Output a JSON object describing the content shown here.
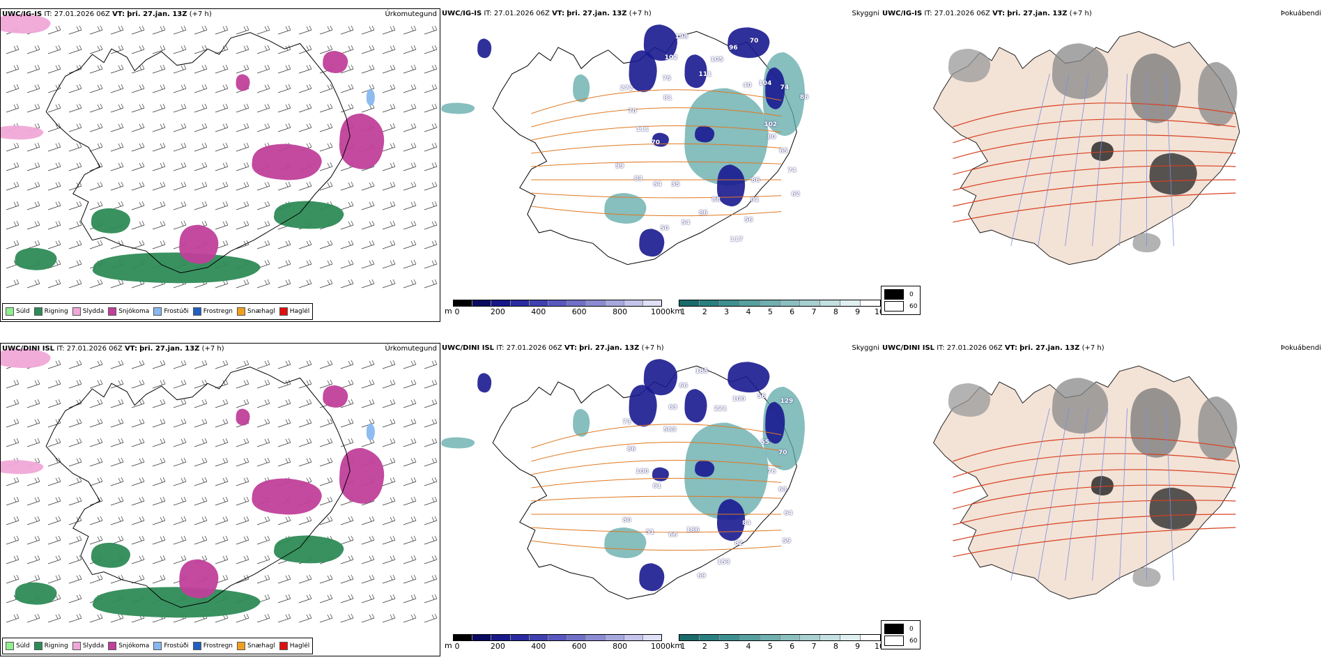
{
  "rows": [
    {
      "model": "UWC/IG-IS",
      "it_label": "IT:",
      "it_value": "27.01.2026 06Z",
      "vt_label": "VT:",
      "vt_value": "þri. 27.jan. 13Z",
      "offset": "(+7 h)",
      "cloud_labels": [
        "80",
        "65",
        "74",
        "62",
        "86",
        "81",
        "56",
        "117",
        "88",
        "86",
        "54",
        "50",
        "35",
        "64",
        "83",
        "99",
        "70",
        "111",
        "70",
        "272",
        "81",
        "75",
        "102",
        "198",
        "111",
        "105",
        "96",
        "70",
        "40",
        "104",
        "74",
        "86",
        "102"
      ]
    },
    {
      "model": "UWC/DINI ISL",
      "it_label": "IT:",
      "it_value": "27.01.2026 06Z",
      "vt_label": "VT:",
      "vt_value": "þri. 27.jan. 13Z",
      "offset": "(+7 h)",
      "cloud_labels": [
        "76",
        "63",
        "64",
        "59",
        "84",
        "82",
        "153",
        "69",
        "186",
        "66",
        "51",
        "80",
        "61",
        "100",
        "86",
        "73",
        "563",
        "63",
        "66",
        "185",
        "221",
        "100",
        "56",
        "129",
        "55",
        "70"
      ]
    }
  ],
  "panel_titles": {
    "precip": "Úrkomutegund",
    "cloud": "Skyggni",
    "fog": "Þokuábendi"
  },
  "precip_legend": [
    {
      "label": "Súld",
      "color": "#90ee90"
    },
    {
      "label": "Rigning",
      "color": "#2e8b57"
    },
    {
      "label": "Slydda",
      "color": "#f0a8d8"
    },
    {
      "label": "Snjókoma",
      "color": "#c0409a"
    },
    {
      "label": "Frostúði",
      "color": "#88b8f0"
    },
    {
      "label": "Frostregn",
      "color": "#2060c0"
    },
    {
      "label": "Snæhagl",
      "color": "#f0a020"
    },
    {
      "label": "Haglél",
      "color": "#e01010"
    }
  ],
  "ceiling_colorbar": {
    "unit": "m",
    "labels": [
      "0",
      "200",
      "400",
      "600",
      "800",
      "1000"
    ],
    "colors": [
      "#000000",
      "#0a0a60",
      "#18188a",
      "#2a2aa0",
      "#4040b0",
      "#5858c0",
      "#7070c8",
      "#8c8cd4",
      "#a8a8e0",
      "#c4c4ec",
      "#e0e0f8"
    ]
  },
  "visibility_colorbar": {
    "unit": "km",
    "labels": [
      "1",
      "2",
      "3",
      "4",
      "5",
      "6",
      "7",
      "8",
      "9",
      "10"
    ],
    "colors": [
      "#1a6b6b",
      "#2a8080",
      "#3e9090",
      "#56a0a0",
      "#70b0b0",
      "#8cc0c0",
      "#a8d0d0",
      "#c4e0e0",
      "#e0f0f0",
      "#ffffff"
    ]
  },
  "fog_legend": [
    {
      "label": "0",
      "color": "#000000"
    },
    {
      "label": "60",
      "color": "#ffffff"
    }
  ]
}
